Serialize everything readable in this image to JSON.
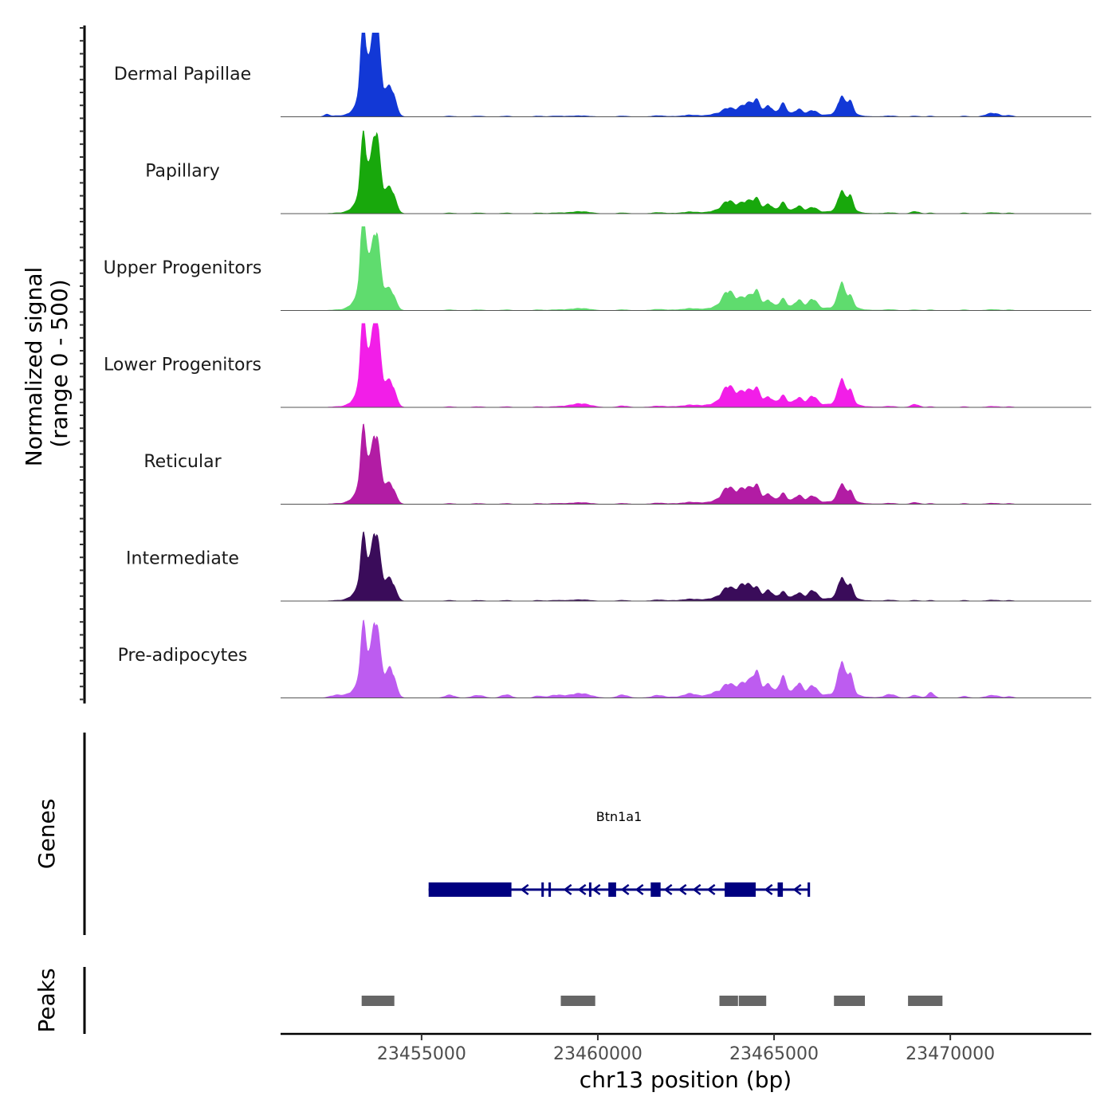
{
  "chart_data": {
    "type": "area",
    "y_axis_title": [
      "Normalized signal",
      "(range 0 - 500)"
    ],
    "x_axis_title": "chr13 position (bp)",
    "x_range": [
      23451000,
      23474000
    ],
    "signal_range": [
      0,
      500
    ],
    "x_ticks": [
      {
        "value": 23455000,
        "label": "23455000"
      },
      {
        "value": 23460000,
        "label": "23460000"
      },
      {
        "value": 23465000,
        "label": "23465000"
      },
      {
        "value": 23470000,
        "label": "23470000"
      }
    ],
    "tracks": [
      {
        "name": "Dermal Papillae",
        "color": "#1238d6"
      },
      {
        "name": "Papillary",
        "color": "#18a80c"
      },
      {
        "name": "Upper Progenitors",
        "color": "#5fdc6e"
      },
      {
        "name": "Lower Progenitors",
        "color": "#f21ee8"
      },
      {
        "name": "Reticular",
        "color": "#b21ca4"
      },
      {
        "name": "Intermediate",
        "color": "#3a0c5a"
      },
      {
        "name": "Pre-adipocytes",
        "color": "#bd5cf0"
      }
    ],
    "signal_peaks": [
      {
        "position": 23453350,
        "width": 90,
        "heights": [
          470,
          380,
          500,
          460,
          360,
          300,
          350
        ]
      },
      {
        "position": 23453700,
        "width": 110,
        "heights": [
          500,
          395,
          370,
          440,
          320,
          320,
          370
        ]
      },
      {
        "position": 23453550,
        "width": 280,
        "heights": [
          180,
          160,
          170,
          180,
          160,
          150,
          150
        ]
      },
      {
        "position": 23454150,
        "width": 120,
        "heights": [
          130,
          110,
          80,
          105,
          80,
          90,
          135
        ]
      },
      {
        "position": 23454000,
        "width": 180,
        "heights": [
          60,
          55,
          50,
          60,
          45,
          50,
          55
        ]
      },
      {
        "position": 23453050,
        "width": 150,
        "heights": [
          12,
          15,
          20,
          15,
          15,
          15,
          20
        ]
      },
      {
        "position": 23452300,
        "width": 80,
        "heights": [
          15,
          0,
          0,
          0,
          0,
          0,
          0
        ]
      },
      {
        "position": 23452600,
        "width": 200,
        "heights": [
          8,
          6,
          6,
          6,
          6,
          6,
          20
        ]
      },
      {
        "position": 23455800,
        "width": 150,
        "heights": [
          6,
          6,
          6,
          6,
          6,
          6,
          20
        ]
      },
      {
        "position": 23456600,
        "width": 180,
        "heights": [
          6,
          6,
          6,
          6,
          6,
          6,
          18
        ]
      },
      {
        "position": 23457400,
        "width": 150,
        "heights": [
          6,
          6,
          6,
          6,
          6,
          6,
          22
        ]
      },
      {
        "position": 23458300,
        "width": 120,
        "heights": [
          6,
          6,
          6,
          6,
          6,
          6,
          14
        ]
      },
      {
        "position": 23458800,
        "width": 200,
        "heights": [
          6,
          6,
          6,
          6,
          6,
          6,
          18
        ]
      },
      {
        "position": 23459500,
        "width": 300,
        "heights": [
          8,
          15,
          15,
          25,
          12,
          10,
          30
        ]
      },
      {
        "position": 23460700,
        "width": 150,
        "heights": [
          6,
          6,
          6,
          10,
          6,
          6,
          20
        ]
      },
      {
        "position": 23461700,
        "width": 150,
        "heights": [
          6,
          6,
          6,
          6,
          6,
          6,
          14
        ]
      },
      {
        "position": 23462600,
        "width": 150,
        "heights": [
          6,
          6,
          6,
          6,
          6,
          6,
          18
        ]
      },
      {
        "position": 23463300,
        "width": 120,
        "heights": [
          6,
          6,
          6,
          6,
          6,
          6,
          14
        ]
      },
      {
        "position": 23463700,
        "width": 170,
        "heights": [
          45,
          70,
          110,
          120,
          95,
          75,
          70
        ]
      },
      {
        "position": 23464050,
        "width": 110,
        "heights": [
          35,
          35,
          40,
          50,
          55,
          60,
          45
        ]
      },
      {
        "position": 23464250,
        "width": 110,
        "heights": [
          60,
          55,
          60,
          70,
          70,
          75,
          65
        ]
      },
      {
        "position": 23464500,
        "width": 110,
        "heights": [
          90,
          80,
          105,
          95,
          100,
          65,
          140
        ]
      },
      {
        "position": 23464850,
        "width": 100,
        "heights": [
          55,
          45,
          45,
          40,
          45,
          50,
          60
        ]
      },
      {
        "position": 23465250,
        "width": 100,
        "heights": [
          70,
          55,
          55,
          50,
          50,
          40,
          110
        ]
      },
      {
        "position": 23465700,
        "width": 110,
        "heights": [
          35,
          35,
          50,
          40,
          40,
          35,
          70
        ]
      },
      {
        "position": 23466100,
        "width": 120,
        "heights": [
          30,
          30,
          60,
          55,
          40,
          55,
          60
        ]
      },
      {
        "position": 23464800,
        "width": 1600,
        "heights": [
          18,
          18,
          22,
          28,
          22,
          22,
          30
        ]
      },
      {
        "position": 23466900,
        "width": 90,
        "heights": [
          95,
          110,
          140,
          140,
          95,
          115,
          185
        ]
      },
      {
        "position": 23467150,
        "width": 90,
        "heights": [
          75,
          90,
          65,
          80,
          60,
          80,
          120
        ]
      },
      {
        "position": 23467000,
        "width": 250,
        "heights": [
          30,
          30,
          35,
          35,
          30,
          30,
          40
        ]
      },
      {
        "position": 23468300,
        "width": 150,
        "heights": [
          6,
          6,
          6,
          6,
          6,
          6,
          22
        ]
      },
      {
        "position": 23469000,
        "width": 120,
        "heights": [
          6,
          15,
          6,
          20,
          12,
          6,
          18
        ]
      },
      {
        "position": 23469450,
        "width": 100,
        "heights": [
          6,
          6,
          6,
          6,
          6,
          6,
          35
        ]
      },
      {
        "position": 23470400,
        "width": 120,
        "heights": [
          6,
          6,
          6,
          6,
          6,
          6,
          12
        ]
      },
      {
        "position": 23471200,
        "width": 200,
        "heights": [
          25,
          8,
          8,
          8,
          8,
          8,
          18
        ]
      },
      {
        "position": 23471700,
        "width": 100,
        "heights": [
          10,
          6,
          6,
          6,
          6,
          6,
          10
        ]
      }
    ],
    "genes_track_title": "Genes",
    "gene": {
      "name": "Btn1a1",
      "strand": "-",
      "start": 23455200,
      "end": 23466000,
      "exons": [
        [
          23455200,
          23457550
        ],
        [
          23458400,
          23458430
        ],
        [
          23458600,
          23458630
        ],
        [
          23459750,
          23459780
        ],
        [
          23460300,
          23460520
        ],
        [
          23461500,
          23461780
        ],
        [
          23463600,
          23464480
        ],
        [
          23465100,
          23465250
        ],
        [
          23465950,
          23466020
        ]
      ]
    },
    "peaks_track_title": "Peaks",
    "peaks": [
      [
        23453300,
        23454250
      ],
      [
        23458950,
        23459950
      ],
      [
        23463450,
        23464000
      ],
      [
        23464000,
        23464800
      ],
      [
        23466700,
        23467600
      ],
      [
        23468800,
        23469800
      ]
    ]
  }
}
